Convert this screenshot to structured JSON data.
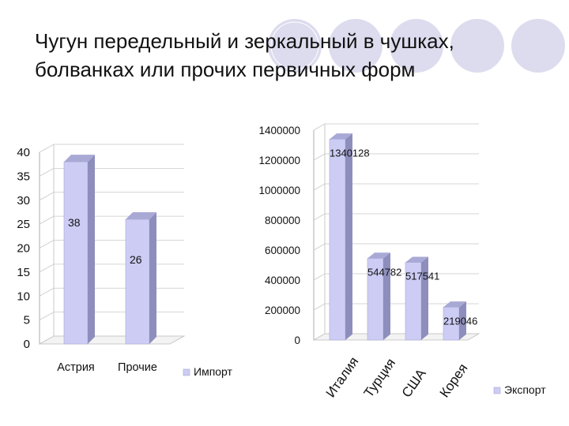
{
  "slide": {
    "title_line1": "Чугун передельный и зеркальный в чушках,",
    "title_line2": "болванках или прочих первичных форм",
    "decor_color": "#d9d9ec"
  },
  "chart_data": [
    {
      "type": "bar",
      "categories": [
        "Астрия",
        "Прочие"
      ],
      "series": [
        {
          "name": "Импорт",
          "values": [
            38,
            26
          ]
        }
      ],
      "data_labels": [
        "38",
        "26"
      ],
      "ylim": [
        0,
        40
      ],
      "yticks": [
        "0",
        "5",
        "10",
        "15",
        "20",
        "25",
        "30",
        "35",
        "40"
      ],
      "grid": true,
      "legend": "bottom-right",
      "bar_color": "#ccccf5"
    },
    {
      "type": "bar",
      "categories": [
        "Италия",
        "Турция",
        "США",
        "Корея"
      ],
      "series": [
        {
          "name": "Экспорт",
          "values": [
            1340128,
            544782,
            517541,
            219046
          ]
        }
      ],
      "data_labels": [
        "1340128",
        "544782",
        "517541",
        "219046"
      ],
      "ylim": [
        0,
        1400000
      ],
      "yticks": [
        "0",
        "200000",
        "400000",
        "600000",
        "800000",
        "1000000",
        "1200000",
        "1400000"
      ],
      "grid": true,
      "legend": "bottom-right",
      "bar_color": "#ccccf5"
    }
  ]
}
